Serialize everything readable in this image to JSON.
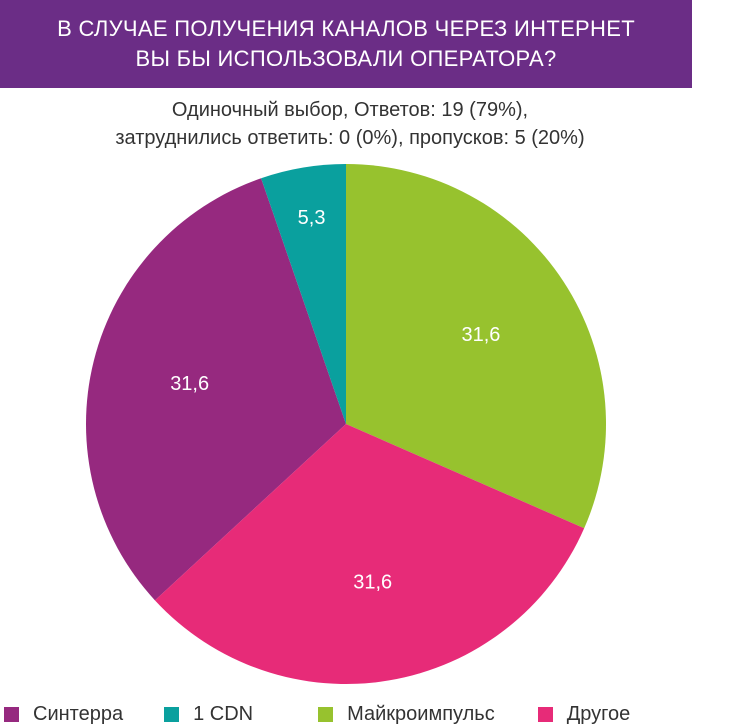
{
  "banner": {
    "title": "В СЛУЧАЕ ПОЛУЧЕНИЯ КАНАЛОВ ЧЕРЕЗ ИНТЕРНЕТ\nВЫ БЫ ИСПОЛЬЗОВАЛИ ОПЕРАТОРА?"
  },
  "subtitle": "Одиночный выбор, Ответов: 19 (79%),\nзатруднились ответить: 0 (0%), пропусков: 5 (20%)",
  "chart_data": {
    "type": "pie",
    "title": "В СЛУЧАЕ ПОЛУЧЕНИЯ КАНАЛОВ ЧЕРЕЗ ИНТЕРНЕТ ВЫ БЫ ИСПОЛЬЗОВАЛИ ОПЕРАТОРА?",
    "subtitle": "Одиночный выбор, Ответов: 19 (79%), затруднились ответить: 0 (0%), пропусков: 5 (20%)",
    "slices": [
      {
        "name": "Синтерра",
        "value": 31.6,
        "label": "31,6",
        "color": "#96297f"
      },
      {
        "name": "1 CDN",
        "value": 5.3,
        "label": "5,3",
        "color": "#0aa09e"
      },
      {
        "name": "Майкроимпульс",
        "value": 31.6,
        "label": "31,6",
        "color": "#97c22e"
      },
      {
        "name": "Другое",
        "value": 31.6,
        "label": "31,6",
        "color": "#e72b78"
      }
    ],
    "legend_position": "bottom"
  },
  "legend": [
    {
      "label": "Синтерра",
      "color": "#96297f"
    },
    {
      "label": "1 CDN",
      "color": "#0aa09e"
    },
    {
      "label": "Майкроимпульс",
      "color": "#97c22e"
    },
    {
      "label": "Другое",
      "color": "#e72b78"
    }
  ]
}
